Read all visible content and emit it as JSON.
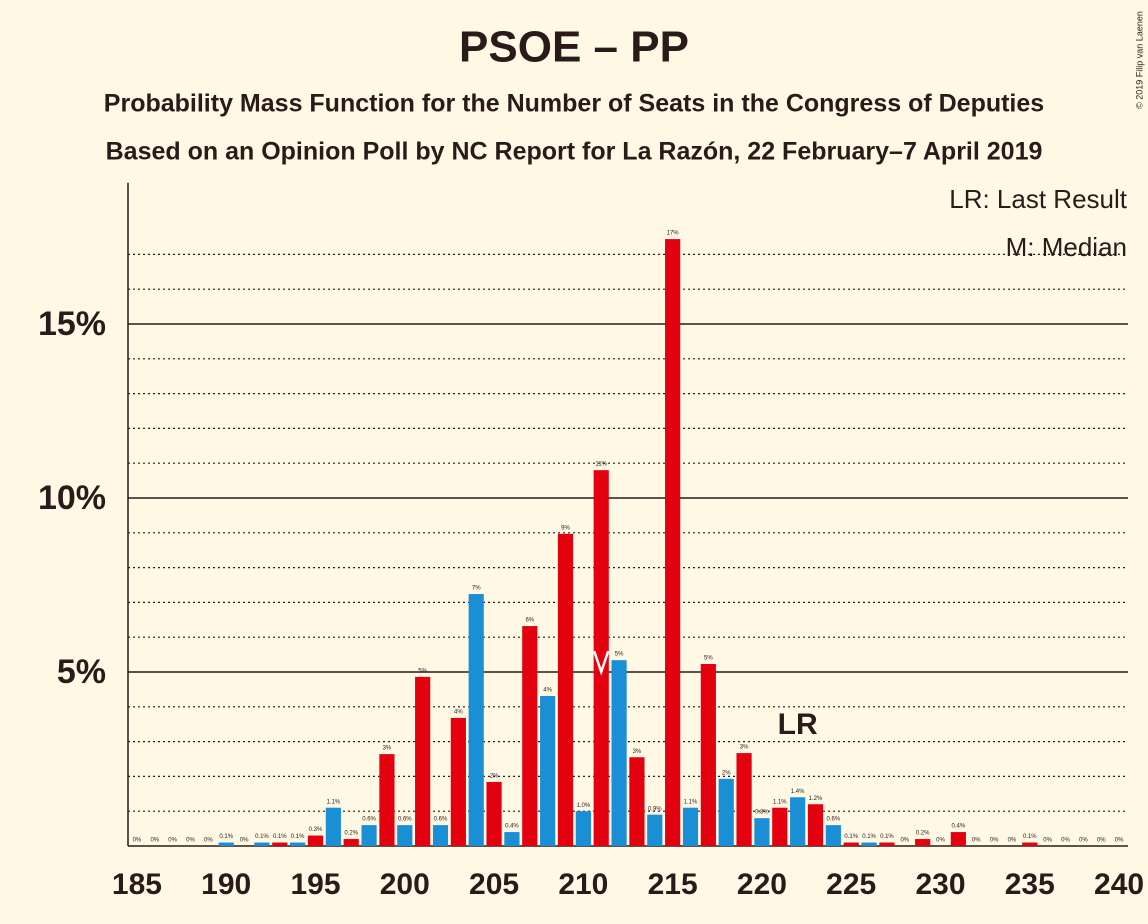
{
  "chart_data": {
    "type": "bar",
    "title": "PSOE – PP",
    "subtitle": "Probability Mass Function for the Number of Seats in the Congress of Deputies",
    "subtitle2": "Based on an Opinion Poll by NC Report for La Razón, 22 February–7 April 2019",
    "copyright": "© 2019 Filip van Laenen",
    "legend_lr": "LR: Last Result",
    "legend_median": "M: Median",
    "lr_label": "LR",
    "last_result": 222,
    "median": 211,
    "x": [
      185,
      186,
      187,
      188,
      189,
      190,
      191,
      192,
      193,
      194,
      195,
      196,
      197,
      198,
      199,
      200,
      201,
      202,
      203,
      204,
      205,
      206,
      207,
      208,
      209,
      210,
      211,
      212,
      213,
      214,
      215,
      216,
      217,
      218,
      219,
      220,
      221,
      222,
      223,
      224,
      225,
      226,
      227,
      228,
      229,
      230,
      231,
      232,
      233,
      234,
      235,
      236,
      237,
      238,
      239,
      240
    ],
    "values": [
      0,
      0,
      0,
      0,
      0,
      0.1,
      0,
      0.1,
      0.1,
      0.1,
      0.3,
      1.1,
      0.2,
      0.6,
      2.64,
      0.6,
      4.86,
      0.6,
      3.68,
      7.24,
      1.84,
      0.4,
      6.32,
      4.31,
      8.97,
      1.0,
      10.8,
      5.34,
      2.55,
      0.9,
      17.44,
      1.1,
      5.23,
      1.93,
      2.67,
      0.8,
      1.1,
      1.4,
      1.2,
      0.6,
      0.1,
      0.1,
      0.1,
      0,
      0.2,
      0,
      0.4,
      0,
      0,
      0,
      0.1,
      0,
      0,
      0,
      0,
      0
    ],
    "value_labels": [
      "0%",
      "0%",
      "0%",
      "0%",
      "0%",
      "0.1%",
      "0%",
      "0.1%",
      "0.1%",
      "0.1%",
      "0.3%",
      "1.1%",
      "0.2%",
      "0.6%",
      "3%",
      "0.6%",
      "5%",
      "0.6%",
      "4%",
      "7%",
      "2%",
      "0.4%",
      "6%",
      "4%",
      "9%",
      "1.0%",
      "11%",
      "5%",
      "3%",
      "0.9%",
      "17%",
      "1.1%",
      "5%",
      "2%",
      "3%",
      "0.8%",
      "1.1%",
      "1.4%",
      "1.2%",
      "0.6%",
      "0.1%",
      "0.1%",
      "0.1%",
      "0%",
      "0.2%",
      "0%",
      "0.4%",
      "0%",
      "0%",
      "0%",
      "0.1%",
      "0%",
      "0%",
      "0%",
      "0%",
      "0%"
    ],
    "colors": [
      "#1a8fd6",
      "#e3000f"
    ],
    "xlim": [
      184.5,
      240.5
    ],
    "xticks": [
      185,
      190,
      195,
      200,
      205,
      210,
      215,
      220,
      225,
      230,
      235,
      240
    ],
    "ylim": [
      0,
      19
    ],
    "yticks": [
      {
        "value": 5,
        "label": "5%"
      },
      {
        "value": 10,
        "label": "10%"
      },
      {
        "value": 15,
        "label": "15%"
      }
    ],
    "minor_yticks": [
      1,
      2,
      3,
      4,
      6,
      7,
      8,
      9,
      11,
      12,
      13,
      14,
      16,
      17
    ]
  }
}
